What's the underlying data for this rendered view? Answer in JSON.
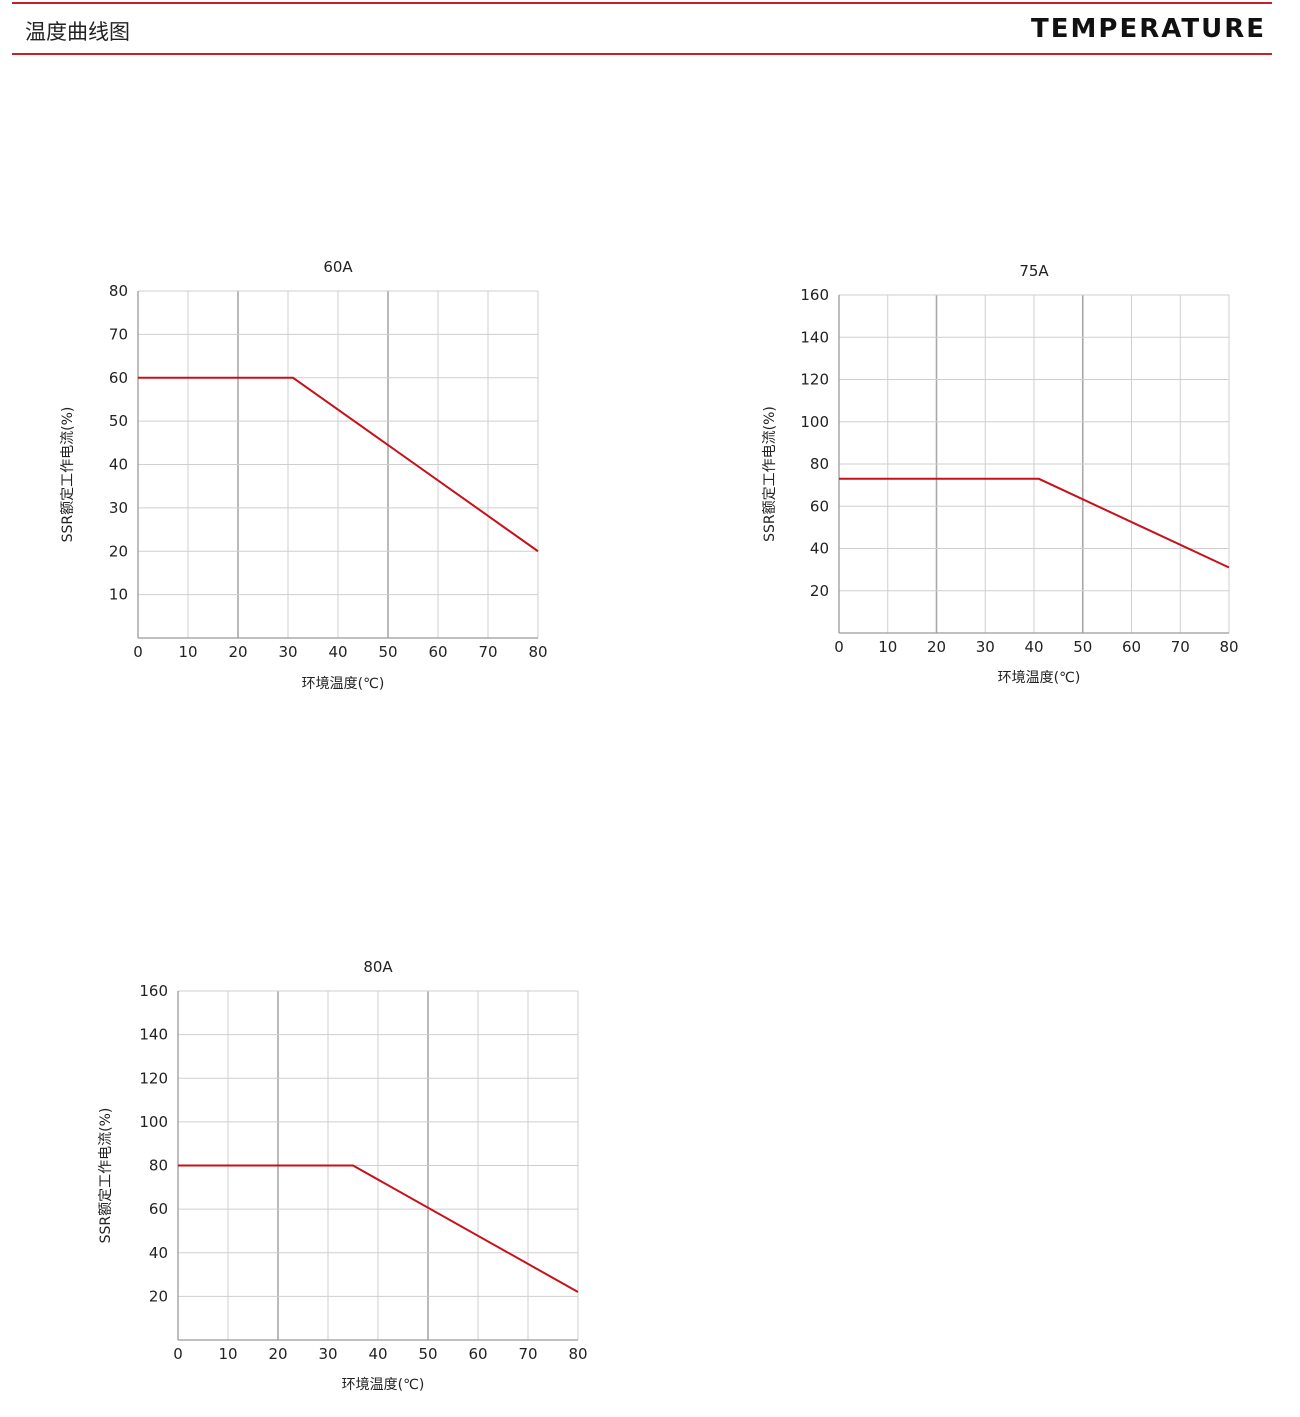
{
  "header": {
    "title_cn": "温度曲线图",
    "title_en": "TEMPERATURE"
  },
  "colors": {
    "accent": "#c8202a",
    "curve": "#c8101a",
    "grid": "#cfcfcf",
    "grid_major": "#a8a8a8"
  },
  "chart_data": [
    {
      "type": "line",
      "title": "60A",
      "xlabel": "环境温度(℃)",
      "ylabel": "SSR额定工作电流(%)",
      "xlim": [
        0,
        80
      ],
      "ylim": [
        0,
        80
      ],
      "xticks": [
        0,
        10,
        20,
        30,
        40,
        50,
        60,
        70,
        80
      ],
      "yticks": [
        10,
        20,
        30,
        40,
        50,
        60,
        70,
        80
      ],
      "grid": true,
      "series": [
        {
          "x": [
            0,
            31,
            80
          ],
          "y": [
            60,
            60,
            20
          ]
        }
      ]
    },
    {
      "type": "line",
      "title": "75A",
      "xlabel": "环境温度(℃)",
      "ylabel": "SSR额定工作电流(%)",
      "xlim": [
        0,
        80
      ],
      "ylim": [
        0,
        160
      ],
      "xticks": [
        0,
        10,
        20,
        30,
        40,
        50,
        60,
        70,
        80
      ],
      "yticks": [
        20,
        40,
        60,
        80,
        100,
        120,
        140,
        160
      ],
      "grid": true,
      "series": [
        {
          "x": [
            0,
            41,
            80
          ],
          "y": [
            73,
            73,
            31
          ]
        }
      ]
    },
    {
      "type": "line",
      "title": "80A",
      "xlabel": "环境温度(℃)",
      "ylabel": "SSR额定工作电流(%)",
      "xlim": [
        0,
        80
      ],
      "ylim": [
        0,
        160
      ],
      "xticks": [
        0,
        10,
        20,
        30,
        40,
        50,
        60,
        70,
        80
      ],
      "yticks": [
        20,
        40,
        60,
        80,
        100,
        120,
        140,
        160
      ],
      "grid": true,
      "series": [
        {
          "x": [
            0,
            35,
            80
          ],
          "y": [
            80,
            80,
            22
          ]
        }
      ]
    }
  ]
}
